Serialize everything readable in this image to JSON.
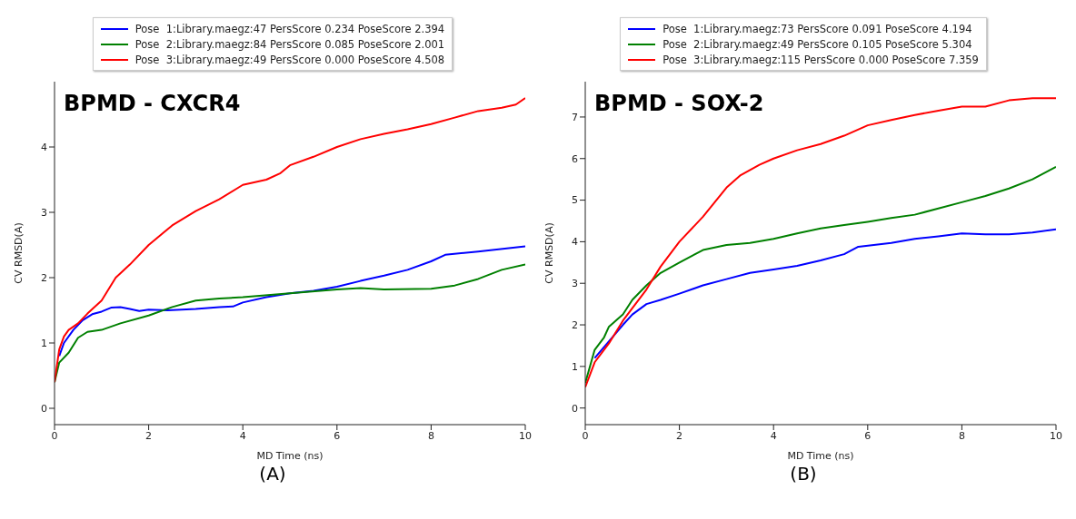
{
  "chart_data": [
    {
      "type": "line",
      "title": "BPMD - CXCR4",
      "xlabel": "MD Time (ns)",
      "ylabel": "CV RMSD(A)",
      "xlim": [
        0,
        10
      ],
      "ylim": [
        -0.25,
        5.0
      ],
      "xticks": [
        0,
        2,
        4,
        6,
        8,
        10
      ],
      "yticks": [
        0,
        1,
        2,
        3,
        4
      ],
      "legend": "top",
      "annotations": [
        "(A)"
      ],
      "series": [
        {
          "name": "Pose  1:Library.maegz:47 PersScore 0.234 PoseScore 2.394",
          "color": "#0000ff",
          "x": [
            0.1,
            0.2,
            0.4,
            0.6,
            0.8,
            1.0,
            1.2,
            1.4,
            1.6,
            1.8,
            2.0,
            2.4,
            3,
            3.5,
            3.8,
            4,
            4.5,
            5,
            5.5,
            6,
            6.5,
            7,
            7.5,
            8,
            8.3,
            9,
            10
          ],
          "values": [
            0.8,
            1.0,
            1.2,
            1.35,
            1.44,
            1.48,
            1.54,
            1.55,
            1.52,
            1.49,
            1.51,
            1.5,
            1.52,
            1.55,
            1.56,
            1.62,
            1.7,
            1.76,
            1.8,
            1.86,
            1.95,
            2.03,
            2.12,
            2.25,
            2.35,
            2.4,
            2.48
          ]
        },
        {
          "name": "Pose  2:Library.maegz:84 PersScore 0.085 PoseScore 2.001",
          "color": "#008000",
          "x": [
            0,
            0.1,
            0.3,
            0.5,
            0.7,
            1,
            1.4,
            2,
            2.5,
            3,
            3.5,
            4,
            5,
            6,
            6.5,
            7,
            8,
            8.5,
            9,
            9.5,
            10
          ],
          "values": [
            0.4,
            0.7,
            0.85,
            1.08,
            1.17,
            1.2,
            1.3,
            1.42,
            1.55,
            1.65,
            1.68,
            1.7,
            1.76,
            1.82,
            1.84,
            1.82,
            1.83,
            1.88,
            1.98,
            2.12,
            2.2
          ]
        },
        {
          "name": "Pose  3:Library.maegz:49 PersScore 0.000 PoseScore 4.508",
          "color": "#ff0000",
          "x": [
            0,
            0.1,
            0.2,
            0.3,
            0.5,
            0.7,
            1,
            1.3,
            1.6,
            2,
            2.5,
            3,
            3.5,
            4,
            4.5,
            4.8,
            5,
            5.5,
            6,
            6.5,
            7,
            7.5,
            8,
            8.5,
            9,
            9.5,
            9.8,
            10
          ],
          "values": [
            0.4,
            0.9,
            1.1,
            1.2,
            1.3,
            1.45,
            1.65,
            2.0,
            2.2,
            2.5,
            2.8,
            3.02,
            3.2,
            3.42,
            3.5,
            3.6,
            3.72,
            3.85,
            4.0,
            4.12,
            4.2,
            4.27,
            4.35,
            4.45,
            4.55,
            4.6,
            4.65,
            4.75
          ]
        }
      ]
    },
    {
      "type": "line",
      "title": "BPMD - SOX-2",
      "xlabel": "MD Time (ns)",
      "ylabel": "CV RMSD(A)",
      "xlim": [
        0,
        10
      ],
      "ylim": [
        -0.4,
        7.85
      ],
      "xticks": [
        0,
        2,
        4,
        6,
        8,
        10
      ],
      "yticks": [
        0,
        1,
        2,
        3,
        4,
        5,
        6,
        7
      ],
      "legend": "top",
      "annotations": [
        "(B)"
      ],
      "series": [
        {
          "name": "Pose  1:Library.maegz:73 PersScore 0.091 PoseScore 4.194",
          "color": "#0000ff",
          "x": [
            0.2,
            0.5,
            0.8,
            1,
            1.3,
            1.6,
            2,
            2.5,
            3,
            3.5,
            4,
            4.5,
            5,
            5.5,
            5.8,
            6.5,
            7,
            7.5,
            8,
            8.5,
            9,
            9.5,
            10
          ],
          "values": [
            1.2,
            1.6,
            2.0,
            2.25,
            2.5,
            2.6,
            2.75,
            2.95,
            3.1,
            3.25,
            3.33,
            3.42,
            3.55,
            3.7,
            3.88,
            3.97,
            4.07,
            4.13,
            4.2,
            4.18,
            4.18,
            4.22,
            4.3
          ]
        },
        {
          "name": "Pose  2:Library.maegz:49 PersScore 0.105 PoseScore 5.304",
          "color": "#008000",
          "x": [
            0,
            0.2,
            0.4,
            0.5,
            0.8,
            1,
            1.3,
            1.6,
            2,
            2.5,
            3,
            3.5,
            4,
            4.5,
            5,
            5.5,
            6,
            6.5,
            7,
            7.5,
            8,
            8.5,
            9,
            9.5,
            10
          ],
          "values": [
            0.6,
            1.4,
            1.7,
            1.95,
            2.25,
            2.6,
            2.95,
            3.25,
            3.5,
            3.8,
            3.92,
            3.97,
            4.07,
            4.2,
            4.32,
            4.4,
            4.48,
            4.57,
            4.65,
            4.8,
            4.95,
            5.1,
            5.28,
            5.5,
            5.8
          ]
        },
        {
          "name": "Pose  3:Library.maegz:115 PersScore 0.000 PoseScore 7.359",
          "color": "#ff0000",
          "x": [
            0,
            0.2,
            0.5,
            0.8,
            1,
            1.3,
            1.6,
            2,
            2.5,
            3,
            3.3,
            3.7,
            4,
            4.5,
            5,
            5.5,
            6,
            6.5,
            7,
            7.5,
            8,
            8.5,
            9,
            9.5,
            10
          ],
          "values": [
            0.5,
            1.1,
            1.55,
            2.1,
            2.4,
            2.85,
            3.4,
            4.0,
            4.6,
            5.3,
            5.6,
            5.85,
            6.0,
            6.2,
            6.35,
            6.55,
            6.8,
            6.93,
            7.05,
            7.15,
            7.25,
            7.25,
            7.4,
            7.45,
            7.45
          ]
        }
      ]
    }
  ]
}
